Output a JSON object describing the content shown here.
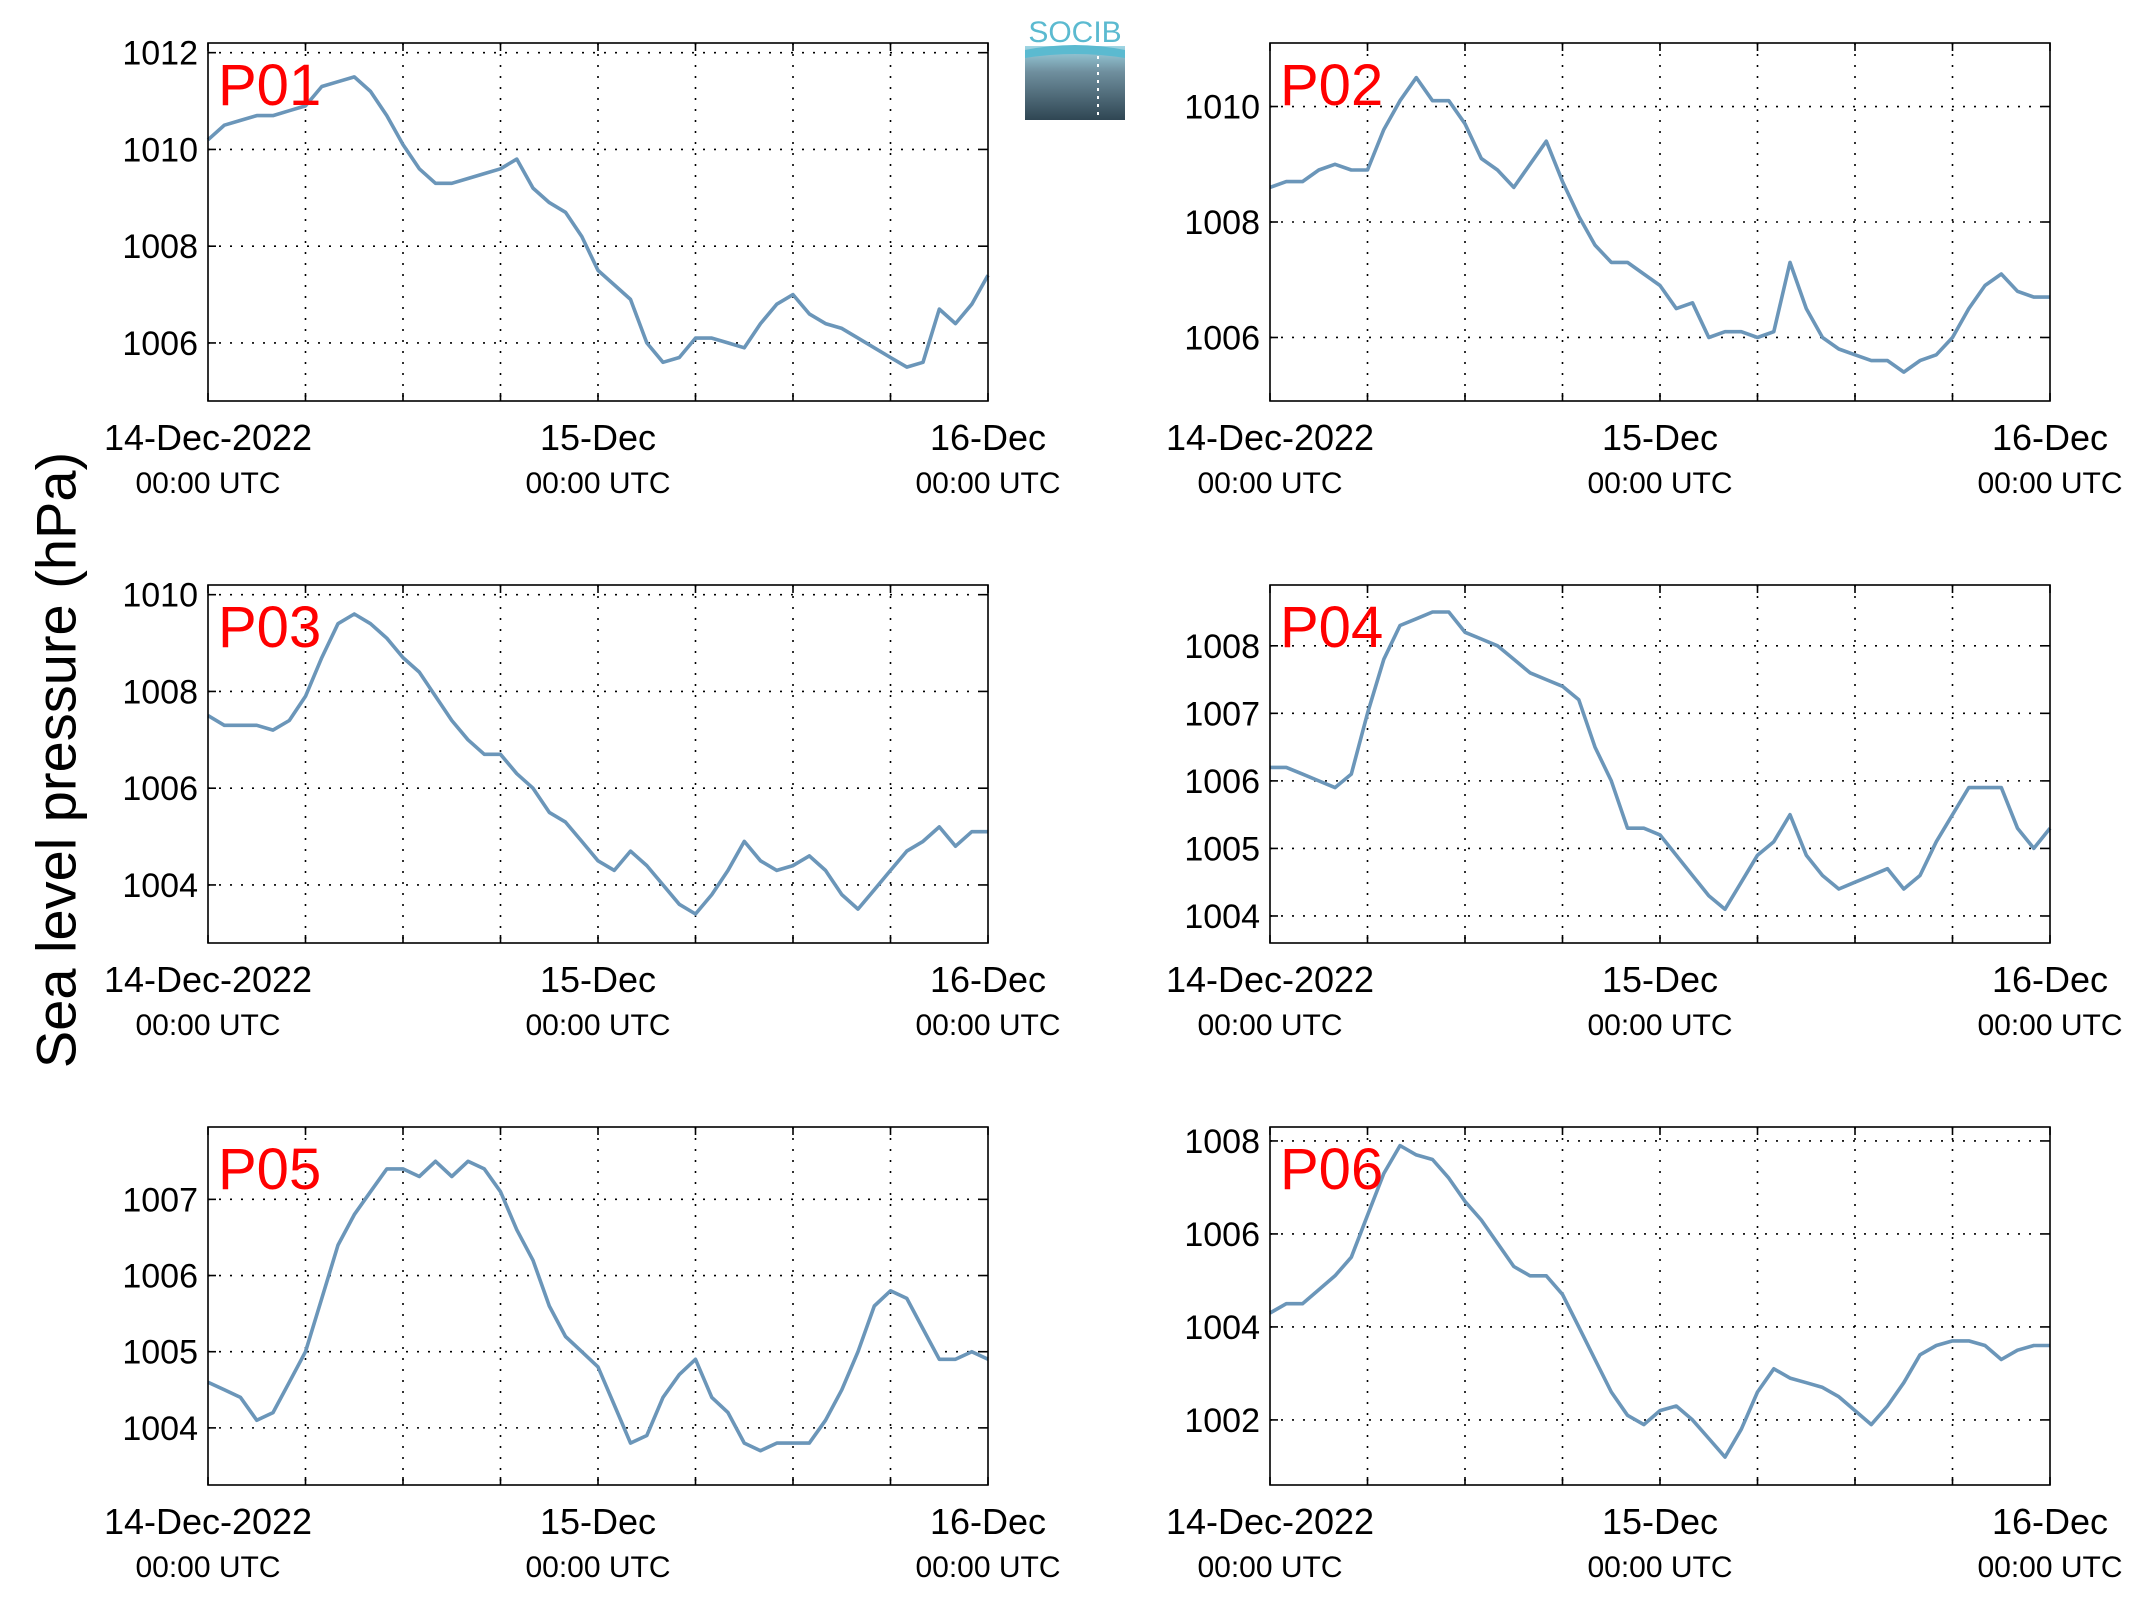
{
  "figure": {
    "ylabel": "Sea level pressure (hPa)",
    "logo_text": "SOCIB"
  },
  "colors": {
    "line": "#6b96b9",
    "panel_label": "#ff0000",
    "grid": "#000000",
    "logo_top": "#5bbad0",
    "logo_bottom": "#2f4653"
  },
  "chart_data": [
    {
      "type": "line",
      "panel_label": "P01",
      "x_tick_labels": [
        [
          "14-Dec-2022",
          "00:00 UTC"
        ],
        [
          "15-Dec",
          "00:00 UTC"
        ],
        [
          "16-Dec",
          "00:00 UTC"
        ]
      ],
      "xlim_hours": [
        0,
        48
      ],
      "ylim": [
        1004.8,
        1012.2
      ],
      "y_ticks": [
        1006,
        1008,
        1010,
        1012
      ],
      "x": [
        0,
        1,
        2,
        3,
        4,
        5,
        6,
        7,
        8,
        9,
        10,
        11,
        12,
        13,
        14,
        15,
        16,
        17,
        18,
        19,
        20,
        21,
        22,
        23,
        24,
        25,
        26,
        27,
        28,
        29,
        30,
        31,
        32,
        33,
        34,
        35,
        36,
        37,
        38,
        39,
        40,
        41,
        42,
        43,
        44,
        45,
        46,
        47,
        48
      ],
      "values": [
        1010.2,
        1010.5,
        1010.6,
        1010.7,
        1010.7,
        1010.8,
        1010.9,
        1011.3,
        1011.4,
        1011.5,
        1011.2,
        1010.7,
        1010.1,
        1009.6,
        1009.3,
        1009.3,
        1009.4,
        1009.5,
        1009.6,
        1009.8,
        1009.2,
        1008.9,
        1008.7,
        1008.2,
        1007.5,
        1007.2,
        1006.9,
        1006.0,
        1005.6,
        1005.7,
        1006.1,
        1006.1,
        1006.0,
        1005.9,
        1006.4,
        1006.8,
        1007.0,
        1006.6,
        1006.4,
        1006.3,
        1006.1,
        1005.9,
        1005.7,
        1005.5,
        1005.6,
        1006.7,
        1006.4,
        1006.8,
        1007.4
      ]
    },
    {
      "type": "line",
      "panel_label": "P02",
      "x_tick_labels": [
        [
          "14-Dec-2022",
          "00:00 UTC"
        ],
        [
          "15-Dec",
          "00:00 UTC"
        ],
        [
          "16-Dec",
          "00:00 UTC"
        ]
      ],
      "xlim_hours": [
        0,
        48
      ],
      "ylim": [
        1004.9,
        1011.1
      ],
      "y_ticks": [
        1006,
        1008,
        1010
      ],
      "x": [
        0,
        1,
        2,
        3,
        4,
        5,
        6,
        7,
        8,
        9,
        10,
        11,
        12,
        13,
        14,
        15,
        16,
        17,
        18,
        19,
        20,
        21,
        22,
        23,
        24,
        25,
        26,
        27,
        28,
        29,
        30,
        31,
        32,
        33,
        34,
        35,
        36,
        37,
        38,
        39,
        40,
        41,
        42,
        43,
        44,
        45,
        46,
        47,
        48
      ],
      "values": [
        1008.6,
        1008.7,
        1008.7,
        1008.9,
        1009.0,
        1008.9,
        1008.9,
        1009.6,
        1010.1,
        1010.5,
        1010.1,
        1010.1,
        1009.7,
        1009.1,
        1008.9,
        1008.6,
        1009.0,
        1009.4,
        1008.7,
        1008.1,
        1007.6,
        1007.3,
        1007.3,
        1007.1,
        1006.9,
        1006.5,
        1006.6,
        1006.0,
        1006.1,
        1006.1,
        1006.0,
        1006.1,
        1007.3,
        1006.5,
        1006.0,
        1005.8,
        1005.7,
        1005.6,
        1005.6,
        1005.4,
        1005.6,
        1005.7,
        1006.0,
        1006.5,
        1006.9,
        1007.1,
        1006.8,
        1006.7,
        1006.7
      ]
    },
    {
      "type": "line",
      "panel_label": "P03",
      "x_tick_labels": [
        [
          "14-Dec-2022",
          "00:00 UTC"
        ],
        [
          "15-Dec",
          "00:00 UTC"
        ],
        [
          "16-Dec",
          "00:00 UTC"
        ]
      ],
      "xlim_hours": [
        0,
        48
      ],
      "ylim": [
        1002.8,
        1010.2
      ],
      "y_ticks": [
        1004,
        1006,
        1008,
        1010
      ],
      "x": [
        0,
        1,
        2,
        3,
        4,
        5,
        6,
        7,
        8,
        9,
        10,
        11,
        12,
        13,
        14,
        15,
        16,
        17,
        18,
        19,
        20,
        21,
        22,
        23,
        24,
        25,
        26,
        27,
        28,
        29,
        30,
        31,
        32,
        33,
        34,
        35,
        36,
        37,
        38,
        39,
        40,
        41,
        42,
        43,
        44,
        45,
        46,
        47,
        48
      ],
      "values": [
        1007.5,
        1007.3,
        1007.3,
        1007.3,
        1007.2,
        1007.4,
        1007.9,
        1008.7,
        1009.4,
        1009.6,
        1009.4,
        1009.1,
        1008.7,
        1008.4,
        1007.9,
        1007.4,
        1007.0,
        1006.7,
        1006.7,
        1006.3,
        1006.0,
        1005.5,
        1005.3,
        1004.9,
        1004.5,
        1004.3,
        1004.7,
        1004.4,
        1004.0,
        1003.6,
        1003.4,
        1003.8,
        1004.3,
        1004.9,
        1004.5,
        1004.3,
        1004.4,
        1004.6,
        1004.3,
        1003.8,
        1003.5,
        1003.9,
        1004.3,
        1004.7,
        1004.9,
        1005.2,
        1004.8,
        1005.1,
        1005.1
      ]
    },
    {
      "type": "line",
      "panel_label": "P04",
      "x_tick_labels": [
        [
          "14-Dec-2022",
          "00:00 UTC"
        ],
        [
          "15-Dec",
          "00:00 UTC"
        ],
        [
          "16-Dec",
          "00:00 UTC"
        ]
      ],
      "xlim_hours": [
        0,
        48
      ],
      "ylim": [
        1003.6,
        1008.9
      ],
      "y_ticks": [
        1004,
        1005,
        1006,
        1007,
        1008
      ],
      "x": [
        0,
        1,
        2,
        3,
        4,
        5,
        6,
        7,
        8,
        9,
        10,
        11,
        12,
        13,
        14,
        15,
        16,
        17,
        18,
        19,
        20,
        21,
        22,
        23,
        24,
        25,
        26,
        27,
        28,
        29,
        30,
        31,
        32,
        33,
        34,
        35,
        36,
        37,
        38,
        39,
        40,
        41,
        42,
        43,
        44,
        45,
        46,
        47,
        48
      ],
      "values": [
        1006.2,
        1006.2,
        1006.1,
        1006.0,
        1005.9,
        1006.1,
        1007.0,
        1007.8,
        1008.3,
        1008.4,
        1008.5,
        1008.5,
        1008.2,
        1008.1,
        1008.0,
        1007.8,
        1007.6,
        1007.5,
        1007.4,
        1007.2,
        1006.5,
        1006.0,
        1005.3,
        1005.3,
        1005.2,
        1004.9,
        1004.6,
        1004.3,
        1004.1,
        1004.5,
        1004.9,
        1005.1,
        1005.5,
        1004.9,
        1004.6,
        1004.4,
        1004.5,
        1004.6,
        1004.7,
        1004.4,
        1004.6,
        1005.1,
        1005.5,
        1005.9,
        1005.9,
        1005.9,
        1005.3,
        1005.0,
        1005.3
      ]
    },
    {
      "type": "line",
      "panel_label": "P05",
      "x_tick_labels": [
        [
          "14-Dec-2022",
          "00:00 UTC"
        ],
        [
          "15-Dec",
          "00:00 UTC"
        ],
        [
          "16-Dec",
          "00:00 UTC"
        ]
      ],
      "xlim_hours": [
        0,
        48
      ],
      "ylim": [
        1003.25,
        1007.95
      ],
      "y_ticks": [
        1004,
        1005,
        1006,
        1007
      ],
      "x": [
        0,
        1,
        2,
        3,
        4,
        5,
        6,
        7,
        8,
        9,
        10,
        11,
        12,
        13,
        14,
        15,
        16,
        17,
        18,
        19,
        20,
        21,
        22,
        23,
        24,
        25,
        26,
        27,
        28,
        29,
        30,
        31,
        32,
        33,
        34,
        35,
        36,
        37,
        38,
        39,
        40,
        41,
        42,
        43,
        44,
        45,
        46,
        47,
        48
      ],
      "values": [
        1004.6,
        1004.5,
        1004.4,
        1004.1,
        1004.2,
        1004.6,
        1005.0,
        1005.7,
        1006.4,
        1006.8,
        1007.1,
        1007.4,
        1007.4,
        1007.3,
        1007.5,
        1007.3,
        1007.5,
        1007.4,
        1007.1,
        1006.6,
        1006.2,
        1005.6,
        1005.2,
        1005.0,
        1004.8,
        1004.3,
        1003.8,
        1003.9,
        1004.4,
        1004.7,
        1004.9,
        1004.4,
        1004.2,
        1003.8,
        1003.7,
        1003.8,
        1003.8,
        1003.8,
        1004.1,
        1004.5,
        1005.0,
        1005.6,
        1005.8,
        1005.7,
        1005.3,
        1004.9,
        1004.9,
        1005.0,
        1004.9
      ]
    },
    {
      "type": "line",
      "panel_label": "P06",
      "x_tick_labels": [
        [
          "14-Dec-2022",
          "00:00 UTC"
        ],
        [
          "15-Dec",
          "00:00 UTC"
        ],
        [
          "16-Dec",
          "00:00 UTC"
        ]
      ],
      "xlim_hours": [
        0,
        48
      ],
      "ylim": [
        1000.6,
        1008.3
      ],
      "y_ticks": [
        1002,
        1004,
        1006,
        1008
      ],
      "x": [
        0,
        1,
        2,
        3,
        4,
        5,
        6,
        7,
        8,
        9,
        10,
        11,
        12,
        13,
        14,
        15,
        16,
        17,
        18,
        19,
        20,
        21,
        22,
        23,
        24,
        25,
        26,
        27,
        28,
        29,
        30,
        31,
        32,
        33,
        34,
        35,
        36,
        37,
        38,
        39,
        40,
        41,
        42,
        43,
        44,
        45,
        46,
        47,
        48
      ],
      "values": [
        1004.3,
        1004.5,
        1004.5,
        1004.8,
        1005.1,
        1005.5,
        1006.4,
        1007.3,
        1007.9,
        1007.7,
        1007.6,
        1007.2,
        1006.7,
        1006.3,
        1005.8,
        1005.3,
        1005.1,
        1005.1,
        1004.7,
        1004.0,
        1003.3,
        1002.6,
        1002.1,
        1001.9,
        1002.2,
        1002.3,
        1002.0,
        1001.6,
        1001.2,
        1001.8,
        1002.6,
        1003.1,
        1002.9,
        1002.8,
        1002.7,
        1002.5,
        1002.2,
        1001.9,
        1002.3,
        1002.8,
        1003.4,
        1003.6,
        1003.7,
        1003.7,
        1003.6,
        1003.3,
        1003.5,
        1003.6,
        1003.6
      ]
    }
  ]
}
